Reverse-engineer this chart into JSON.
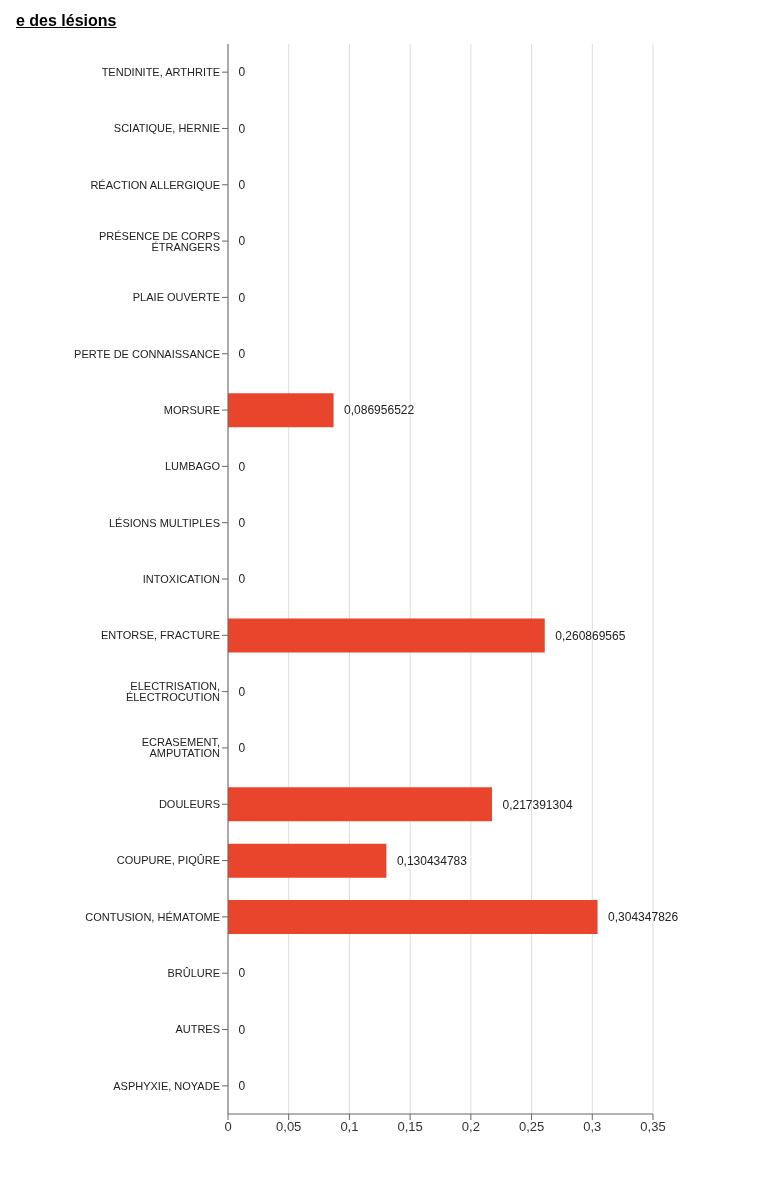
{
  "chart_data": {
    "type": "bar",
    "orientation": "horizontal",
    "title": "e des lésions",
    "categories": [
      "TENDINITE, ARTHRITE",
      "SCIATIQUE, HERNIE",
      "RÉACTION ALLERGIQUE",
      "PRÉSENCE DE CORPS ÉTRANGERS",
      "PLAIE OUVERTE",
      "PERTE DE CONNAISSANCE",
      "MORSURE",
      "LUMBAGO",
      "LÉSIONS MULTIPLES",
      "INTOXICATION",
      "ENTORSE, FRACTURE",
      "ELECTRISATION, ÉLECTROCUTION",
      "ECRASEMENT, AMPUTATION",
      "DOULEURS",
      "COUPURE, PIQÛRE",
      "CONTUSION, HÉMATOME",
      "BRÛLURE",
      "AUTRES",
      "ASPHYXIE, NOYADE"
    ],
    "values": [
      0,
      0,
      0,
      0,
      0,
      0,
      0.086956522,
      0,
      0,
      0,
      0.260869565,
      0,
      0,
      0.217391304,
      0.130434783,
      0.304347826,
      0,
      0,
      0
    ],
    "value_labels": [
      "0",
      "0",
      "0",
      "0",
      "0",
      "0",
      "0,086956522",
      "0",
      "0",
      "0",
      "0,260869565",
      "0",
      "0",
      "0,217391304",
      "0,130434783",
      "0,304347826",
      "0",
      "0",
      "0"
    ],
    "color": "#e8452c",
    "xlim": [
      0,
      0.35
    ],
    "xticks": [
      0,
      {
        "value": 0.05,
        "label": "0,05"
      },
      {
        "value": 0.1,
        "label": "0,1"
      },
      {
        "value": 0.15,
        "label": "0,15"
      },
      {
        "value": 0.2,
        "label": "0,2"
      },
      {
        "value": 0.25,
        "label": "0,25"
      },
      {
        "value": 0.3,
        "label": "0,3"
      },
      {
        "value": 0.35,
        "label": "0,35"
      }
    ],
    "grid": "x"
  }
}
